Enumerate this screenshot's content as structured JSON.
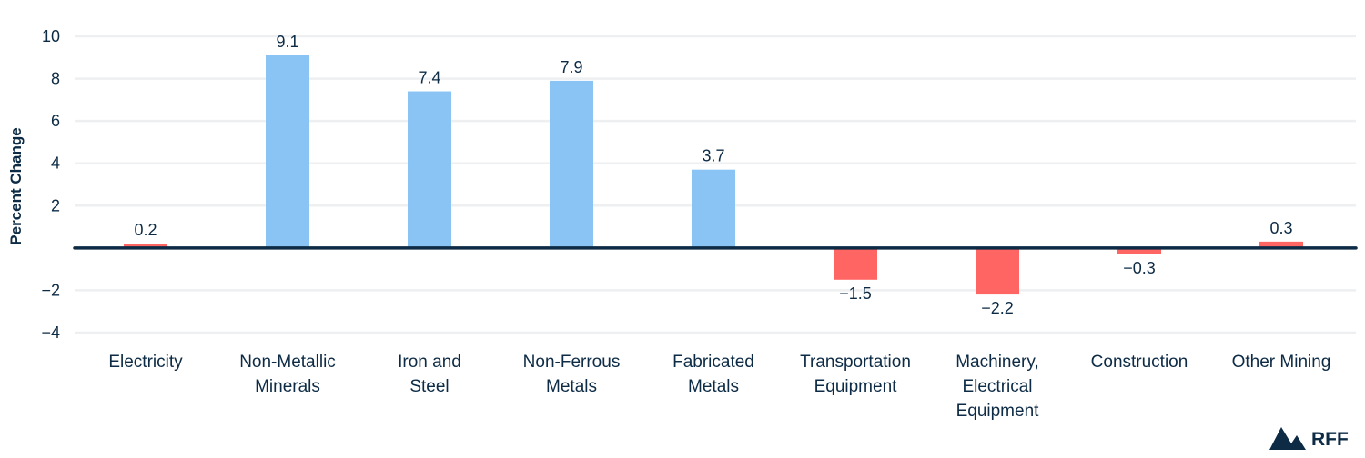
{
  "chart_data": {
    "type": "bar",
    "title": "",
    "xlabel": "",
    "ylabel": "Percent Change",
    "ylim": [
      -4,
      10
    ],
    "yticks": [
      10,
      8,
      6,
      4,
      2,
      -2,
      -4
    ],
    "ytick_labels": [
      "10",
      "8",
      "6",
      "4",
      "2",
      "−2",
      "−4"
    ],
    "grid": true,
    "categories": [
      [
        "Electricity"
      ],
      [
        "Non-Metallic",
        "Minerals"
      ],
      [
        "Iron and",
        "Steel"
      ],
      [
        "Non-Ferrous",
        "Metals"
      ],
      [
        "Fabricated",
        "Metals"
      ],
      [
        "Transportation",
        "Equipment"
      ],
      [
        "Machinery,",
        "Electrical",
        "Equipment"
      ],
      [
        "Construction"
      ],
      [
        "Other Mining"
      ]
    ],
    "values": [
      0.2,
      9.1,
      7.4,
      7.9,
      3.7,
      -1.5,
      -2.2,
      -0.3,
      0.3
    ],
    "value_labels": [
      "0.2",
      "9.1",
      "7.4",
      "7.9",
      "3.7",
      "−1.5",
      "−2.2",
      "−0.3",
      "0.3"
    ],
    "bar_colors": [
      "#ff6663",
      "#89c4f4",
      "#89c4f4",
      "#89c4f4",
      "#89c4f4",
      "#ff6663",
      "#ff6663",
      "#ff6663",
      "#ff6663"
    ]
  },
  "logo": {
    "text": "RFF"
  },
  "colors": {
    "axis": "#0d2b45",
    "grid": "#eeeff1"
  }
}
